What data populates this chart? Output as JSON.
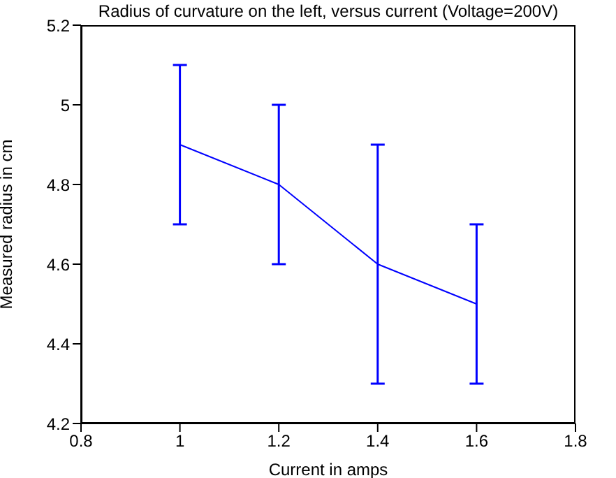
{
  "chart_data": {
    "type": "line",
    "title": "Radius of curvature on the left, versus current (Voltage=200V)",
    "xlabel": "Current in amps",
    "ylabel": "Measured radius in cm",
    "x": [
      1,
      1.2,
      1.4,
      1.6
    ],
    "series": [
      {
        "color": "#0000ff",
        "values": [
          4.9,
          4.8,
          4.6,
          4.5
        ],
        "errors": [
          0.2,
          0.2,
          0.3,
          0.2
        ]
      }
    ],
    "xlim": [
      0.8,
      1.8
    ],
    "xticks": [
      0.8,
      1,
      1.2,
      1.4,
      1.6,
      1.8
    ],
    "ylim": [
      4.2,
      5.2
    ],
    "yticks": [
      4.2,
      4.4,
      4.6,
      4.8,
      5,
      5.2
    ],
    "grid": false,
    "marker": "none",
    "line_style": "solid"
  }
}
